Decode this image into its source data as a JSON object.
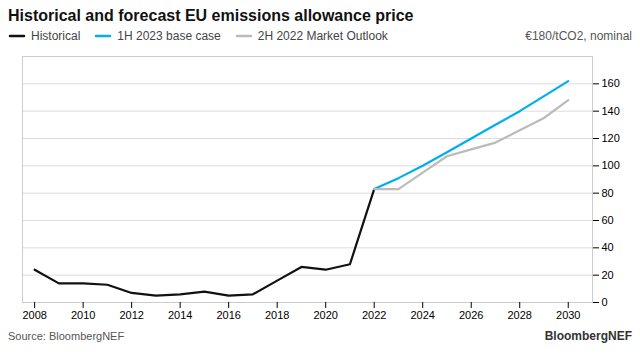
{
  "chart_data": {
    "type": "line",
    "title": "Historical and forecast EU emissions allowance price",
    "y_label": "€180/tCO2, nominal",
    "annotations": [
      "Source: BloombergNEF",
      "BloombergNEF"
    ],
    "xlim": [
      2007.5,
      2031.0
    ],
    "ylim": [
      0,
      180
    ],
    "xticks": [
      2008,
      2010,
      2012,
      2014,
      2016,
      2018,
      2020,
      2022,
      2024,
      2026,
      2028,
      2030
    ],
    "yticks": [
      0,
      20,
      40,
      60,
      80,
      100,
      120,
      140,
      160
    ],
    "grid": true,
    "legend": "top",
    "series": [
      {
        "name": "Historical",
        "color": "#111111",
        "x": [
          2008,
          2009,
          2010,
          2011,
          2012,
          2013,
          2014,
          2015,
          2016,
          2017,
          2018,
          2019,
          2020,
          2021,
          2022
        ],
        "values": [
          24,
          14,
          14,
          13,
          7,
          5,
          6,
          8,
          5,
          6,
          16,
          26,
          24,
          28,
          83
        ]
      },
      {
        "name": "1H 2023 base case",
        "color": "#00AEEF",
        "x": [
          2022,
          2023,
          2024,
          2025,
          2026,
          2027,
          2028,
          2029,
          2030
        ],
        "values": [
          83,
          91,
          100,
          110,
          120,
          130,
          140,
          151,
          162
        ]
      },
      {
        "name": "2H 2022 Market Outlook",
        "color": "#BBBBBB",
        "x": [
          2022,
          2023,
          2024,
          2025,
          2026,
          2027,
          2028,
          2029,
          2030
        ],
        "values": [
          83,
          83,
          95,
          107,
          112,
          117,
          126,
          135,
          148
        ]
      }
    ]
  }
}
